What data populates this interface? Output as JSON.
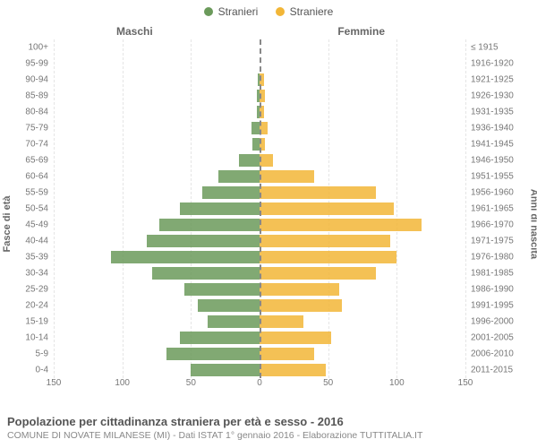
{
  "legend": {
    "male": {
      "label": "Stranieri",
      "color": "#6b9a5b"
    },
    "female": {
      "label": "Straniere",
      "color": "#f2b637"
    }
  },
  "columns": {
    "left": "Maschi",
    "right": "Femmine"
  },
  "axes": {
    "left_title": "Fasce di età",
    "right_title": "Anni di nascita",
    "x_ticks": [
      -150,
      -100,
      -50,
      0,
      50,
      100,
      150
    ],
    "x_tick_labels": [
      "150",
      "100",
      "50",
      "0",
      "50",
      "100",
      "150"
    ],
    "x_max": 150,
    "grid_color": "#e5e5e5"
  },
  "chart": {
    "type": "population-pyramid",
    "background_color": "#ffffff",
    "bar_opacity": 0.85,
    "rows": [
      {
        "age": "0-4",
        "birth": "2011-2015",
        "m": 50,
        "f": 48
      },
      {
        "age": "5-9",
        "birth": "2006-2010",
        "m": 68,
        "f": 40
      },
      {
        "age": "10-14",
        "birth": "2001-2005",
        "m": 58,
        "f": 52
      },
      {
        "age": "15-19",
        "birth": "1996-2000",
        "m": 38,
        "f": 32
      },
      {
        "age": "20-24",
        "birth": "1991-1995",
        "m": 45,
        "f": 60
      },
      {
        "age": "25-29",
        "birth": "1986-1990",
        "m": 55,
        "f": 58
      },
      {
        "age": "30-34",
        "birth": "1981-1985",
        "m": 78,
        "f": 85
      },
      {
        "age": "35-39",
        "birth": "1976-1980",
        "m": 108,
        "f": 100
      },
      {
        "age": "40-44",
        "birth": "1971-1975",
        "m": 82,
        "f": 95
      },
      {
        "age": "45-49",
        "birth": "1966-1970",
        "m": 73,
        "f": 118
      },
      {
        "age": "50-54",
        "birth": "1961-1965",
        "m": 58,
        "f": 98
      },
      {
        "age": "55-59",
        "birth": "1956-1960",
        "m": 42,
        "f": 85
      },
      {
        "age": "60-64",
        "birth": "1951-1955",
        "m": 30,
        "f": 40
      },
      {
        "age": "65-69",
        "birth": "1946-1950",
        "m": 15,
        "f": 10
      },
      {
        "age": "70-74",
        "birth": "1941-1945",
        "m": 5,
        "f": 4
      },
      {
        "age": "75-79",
        "birth": "1936-1940",
        "m": 6,
        "f": 6
      },
      {
        "age": "80-84",
        "birth": "1931-1935",
        "m": 2,
        "f": 3
      },
      {
        "age": "85-89",
        "birth": "1926-1930",
        "m": 2,
        "f": 4
      },
      {
        "age": "90-94",
        "birth": "1921-1925",
        "m": 1,
        "f": 3
      },
      {
        "age": "95-99",
        "birth": "1916-1920",
        "m": 0,
        "f": 0
      },
      {
        "age": "100+",
        "birth": "≤ 1915",
        "m": 0,
        "f": 0
      }
    ]
  },
  "footer": {
    "title": "Popolazione per cittadinanza straniera per età e sesso - 2016",
    "subtitle": "COMUNE DI NOVATE MILANESE (MI) - Dati ISTAT 1° gennaio 2016 - Elaborazione TUTTITALIA.IT"
  }
}
